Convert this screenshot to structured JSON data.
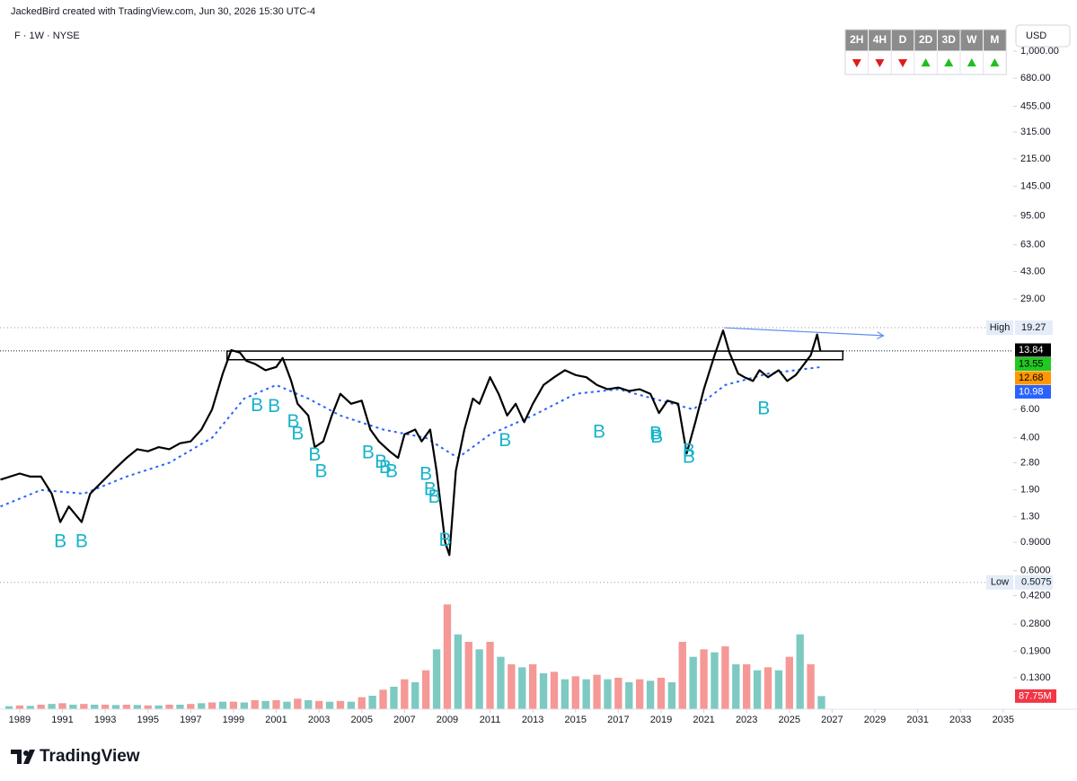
{
  "header": {
    "credit": "JackedBird created with TradingView.com, Jun 30, 2026 15:30 UTC-4",
    "symbol": "F · 1W · NYSE",
    "currency": "USD",
    "logo": "TradingView"
  },
  "timeframes": {
    "up_color": "#1fbf1f",
    "down_color": "#e01b1b",
    "items": [
      {
        "label": "2H",
        "trend": "down"
      },
      {
        "label": "4H",
        "trend": "down"
      },
      {
        "label": "D",
        "trend": "down"
      },
      {
        "label": "2D",
        "trend": "up"
      },
      {
        "label": "3D",
        "trend": "up"
      },
      {
        "label": "W",
        "trend": "up"
      },
      {
        "label": "M",
        "trend": "up"
      }
    ]
  },
  "chart_data": {
    "type": "line",
    "log_scale": true,
    "grid": false,
    "xlim": [
      1988.08,
      2035.47
    ],
    "ylim": [
      0.083,
      1413
    ],
    "xticks": [
      1989,
      1991,
      1993,
      1995,
      1997,
      1999,
      2001,
      2003,
      2005,
      2007,
      2009,
      2011,
      2013,
      2015,
      2017,
      2019,
      2021,
      2023,
      2025,
      2027,
      2029,
      2031,
      2033,
      2035
    ],
    "yticks": [
      {
        "value": 1000,
        "label": "1,000.00"
      },
      {
        "value": 680,
        "label": "680.00"
      },
      {
        "value": 455,
        "label": "455.00"
      },
      {
        "value": 315,
        "label": "315.00"
      },
      {
        "value": 215,
        "label": "215.00"
      },
      {
        "value": 145,
        "label": "145.00"
      },
      {
        "value": 95,
        "label": "95.00"
      },
      {
        "value": 63,
        "label": "63.00"
      },
      {
        "value": 43,
        "label": "43.00"
      },
      {
        "value": 29,
        "label": "29.00"
      },
      {
        "value": 6,
        "label": "6.00"
      },
      {
        "value": 4,
        "label": "4.00"
      },
      {
        "value": 2.8,
        "label": "2.80"
      },
      {
        "value": 1.9,
        "label": "1.90"
      },
      {
        "value": 1.3,
        "label": "1.30"
      },
      {
        "value": 0.9,
        "label": "0.9000"
      },
      {
        "value": 0.6,
        "label": "0.6000"
      },
      {
        "value": 0.42,
        "label": "0.4200"
      },
      {
        "value": 0.28,
        "label": "0.2800"
      },
      {
        "value": 0.19,
        "label": "0.1900"
      },
      {
        "value": 0.13,
        "label": "0.1300"
      }
    ],
    "series": [
      {
        "color": "#000000",
        "style": "solid",
        "x": [
          1988.1,
          1989.0,
          1989.5,
          1990.0,
          1990.5,
          1990.9,
          1991.3,
          1991.9,
          1992.3,
          1992.8,
          1993.5,
          1994.0,
          1994.5,
          1995.0,
          1995.5,
          1996.0,
          1996.5,
          1997.0,
          1997.5,
          1998.0,
          1998.5,
          1998.9,
          1999.3,
          1999.6,
          2000.0,
          2000.5,
          2001.0,
          2001.3,
          2001.7,
          2002.0,
          2002.5,
          2002.8,
          2003.2,
          2003.6,
          2004.0,
          2004.5,
          2005.0,
          2005.4,
          2005.8,
          2006.3,
          2006.7,
          2007.0,
          2007.5,
          2007.8,
          2008.2,
          2008.5,
          2008.9,
          2009.1,
          2009.4,
          2009.8,
          2010.2,
          2010.5,
          2011.0,
          2011.4,
          2011.8,
          2012.2,
          2012.6,
          2013.0,
          2013.5,
          2014.0,
          2014.5,
          2015.0,
          2015.5,
          2016.0,
          2016.5,
          2017.0,
          2017.5,
          2018.0,
          2018.5,
          2018.9,
          2019.3,
          2019.8,
          2020.2,
          2020.6,
          2021.0,
          2021.5,
          2021.9,
          2022.2,
          2022.6,
          2022.9,
          2023.3,
          2023.6,
          2024.0,
          2024.5,
          2024.9,
          2025.3,
          2025.7,
          2026.0,
          2026.3,
          2026.45
        ],
        "values": [
          2.2,
          2.4,
          2.3,
          2.3,
          1.8,
          1.2,
          1.5,
          1.2,
          1.8,
          2.1,
          2.6,
          3.0,
          3.4,
          3.3,
          3.5,
          3.4,
          3.7,
          3.8,
          4.5,
          6.0,
          10.0,
          14,
          13.5,
          12,
          11.5,
          10.5,
          11,
          12.5,
          9,
          6.5,
          5.5,
          3.5,
          3.8,
          5.5,
          7.5,
          6.5,
          6.8,
          4.5,
          3.8,
          3.3,
          3.0,
          4.2,
          4.5,
          3.8,
          4.5,
          2.5,
          0.9,
          0.75,
          2.5,
          4.5,
          7.0,
          6.5,
          9.5,
          7.5,
          5.5,
          6.5,
          5.0,
          6.5,
          8.5,
          9.5,
          10.5,
          9.8,
          9.5,
          8.5,
          8.0,
          8.2,
          7.8,
          8.0,
          7.5,
          5.7,
          6.8,
          6.5,
          3.2,
          5.0,
          8.0,
          13,
          18.5,
          13.5,
          10,
          9.5,
          9.0,
          10.5,
          9.5,
          10.5,
          9.0,
          9.8,
          11.5,
          13.0,
          17.5,
          13.84
        ]
      },
      {
        "color": "#2962ff",
        "style": "dotted",
        "x": [
          1988.1,
          1990,
          1992,
          1994,
          1996,
          1998,
          1999.5,
          2001,
          2002.5,
          2004,
          2006,
          2008,
          2009.5,
          2011,
          2013,
          2015,
          2017,
          2019,
          2020.5,
          2022,
          2024,
          2026.5
        ],
        "values": [
          1.5,
          1.9,
          1.8,
          2.3,
          2.8,
          4.0,
          7.0,
          8.5,
          7.0,
          5.5,
          4.5,
          4.0,
          3.0,
          4.2,
          5.5,
          7.5,
          8.0,
          6.8,
          6.0,
          8.5,
          10.0,
          11.0
        ]
      }
    ],
    "volume": {
      "colors": [
        "#26a69a",
        "#ef5350"
      ],
      "ylim": [
        0,
        1200
      ],
      "x": [
        1988.5,
        1989,
        1989.5,
        1990,
        1990.5,
        1991,
        1991.5,
        1992,
        1992.5,
        1993,
        1993.5,
        1994,
        1994.5,
        1995,
        1995.5,
        1996,
        1996.5,
        1997,
        1997.5,
        1998,
        1998.5,
        1999,
        1999.5,
        2000,
        2000.5,
        2001,
        2001.5,
        2002,
        2002.5,
        2003,
        2003.5,
        2004,
        2004.5,
        2005,
        2005.5,
        2006,
        2006.5,
        2007,
        2007.5,
        2008,
        2008.5,
        2009,
        2009.5,
        2010,
        2010.5,
        2011,
        2011.5,
        2012,
        2012.5,
        2013,
        2013.5,
        2014,
        2014.5,
        2015,
        2015.5,
        2016,
        2016.5,
        2017,
        2017.5,
        2018,
        2018.5,
        2019,
        2019.5,
        2020,
        2020.5,
        2021,
        2021.5,
        2022,
        2022.5,
        2023,
        2023.5,
        2024,
        2024.5,
        2025,
        2025.5,
        2026,
        2026.5
      ],
      "values": [
        20,
        25,
        22,
        30,
        35,
        40,
        30,
        35,
        30,
        30,
        28,
        30,
        28,
        25,
        25,
        30,
        30,
        35,
        40,
        45,
        50,
        50,
        45,
        60,
        55,
        60,
        50,
        70,
        60,
        55,
        50,
        55,
        50,
        80,
        90,
        130,
        150,
        200,
        180,
        260,
        400,
        700,
        500,
        450,
        400,
        450,
        350,
        300,
        280,
        300,
        240,
        250,
        200,
        220,
        200,
        230,
        200,
        210,
        180,
        200,
        190,
        210,
        180,
        450,
        350,
        400,
        380,
        420,
        300,
        300,
        260,
        280,
        260,
        350,
        500,
        300,
        87.75
      ]
    },
    "signals": {
      "color": "#17b3c8",
      "items": [
        {
          "label": "B",
          "x": 1990.9,
          "y": 0.9
        },
        {
          "label": "B",
          "x": 1991.9,
          "y": 0.9
        },
        {
          "label": "B",
          "x": 2000.1,
          "y": 6.3
        },
        {
          "label": "B",
          "x": 2000.9,
          "y": 6.2
        },
        {
          "label": "B",
          "x": 2001.8,
          "y": 5.0
        },
        {
          "label": "B",
          "x": 2002.0,
          "y": 4.2
        },
        {
          "label": "B",
          "x": 2002.8,
          "y": 3.1
        },
        {
          "label": "B",
          "x": 2003.1,
          "y": 2.45
        },
        {
          "label": "B",
          "x": 2005.3,
          "y": 3.2
        },
        {
          "label": "B",
          "x": 2005.9,
          "y": 2.8
        },
        {
          "label": "B",
          "x": 2006.1,
          "y": 2.6
        },
        {
          "label": "B",
          "x": 2006.4,
          "y": 2.45
        },
        {
          "label": "B",
          "x": 2008.0,
          "y": 2.35
        },
        {
          "label": "B",
          "x": 2008.2,
          "y": 1.9
        },
        {
          "label": "B",
          "x": 2008.4,
          "y": 1.7
        },
        {
          "label": "B",
          "x": 2008.9,
          "y": 0.92
        },
        {
          "label": "B",
          "x": 2011.7,
          "y": 3.8
        },
        {
          "label": "B",
          "x": 2016.1,
          "y": 4.3
        },
        {
          "label": "B",
          "x": 2018.75,
          "y": 4.2
        },
        {
          "label": "B",
          "x": 2018.8,
          "y": 4.0
        },
        {
          "label": "B",
          "x": 2020.3,
          "y": 3.3
        },
        {
          "label": "B",
          "x": 2020.3,
          "y": 3.0
        },
        {
          "label": "B",
          "x": 2023.8,
          "y": 6.0
        }
      ]
    },
    "box": {
      "x": [
        1998.7,
        2027.5
      ],
      "y": [
        12.2,
        13.8
      ]
    },
    "trendline": {
      "color": "#5b8def",
      "x": [
        2021.95,
        2029.4
      ],
      "y": [
        19.27,
        17.2
      ]
    },
    "high": {
      "name": "High",
      "value": 19.27
    },
    "low": {
      "name": "Low",
      "value": 0.5075
    },
    "price_tags": [
      {
        "value": 13.84,
        "color": "#000000",
        "text_color": "#ffffff"
      },
      {
        "value": 13.55,
        "color": "#21c921",
        "text_color": "#000000"
      },
      {
        "value": 12.68,
        "color": "#ff9800",
        "text_color": "#000000"
      },
      {
        "value": 10.98,
        "color": "#2962ff",
        "text_color": "#ffffff"
      }
    ],
    "volume_tag": {
      "value": 87.75,
      "label": "87.75M",
      "color": "#f23645",
      "text_color": "#ffffff"
    }
  }
}
